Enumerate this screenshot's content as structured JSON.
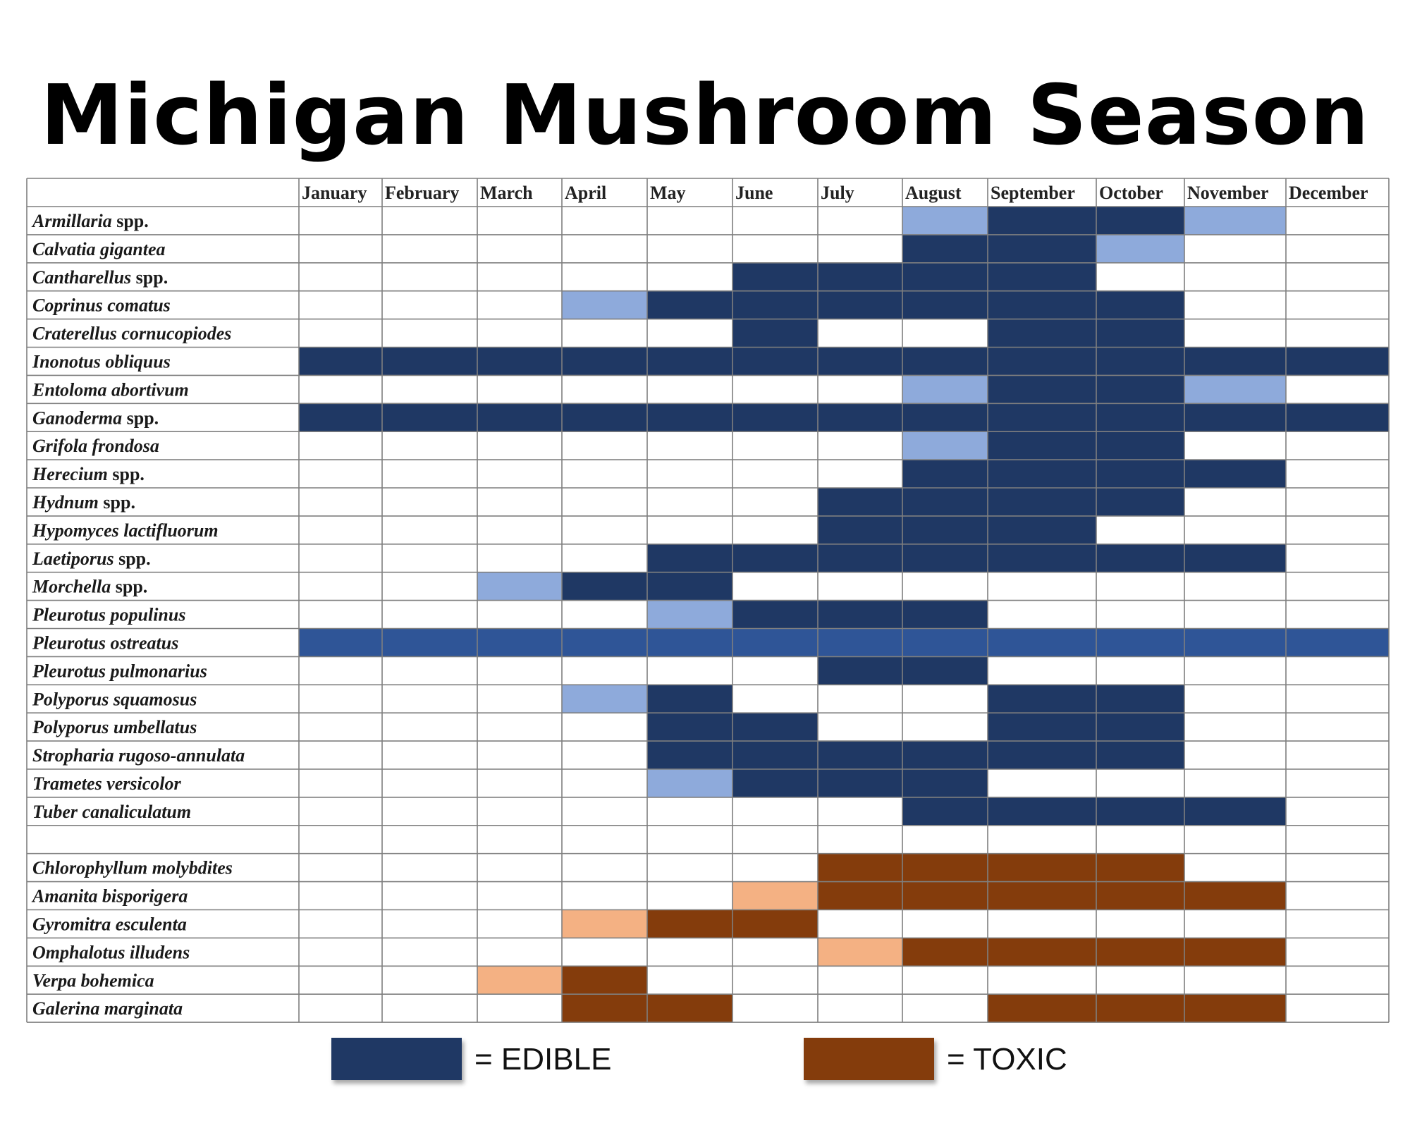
{
  "chart_data": {
    "type": "table",
    "title": "Michigan Mushroom Season",
    "months": [
      "January",
      "February",
      "March",
      "April",
      "May",
      "June",
      "July",
      "August",
      "September",
      "October",
      "November",
      "December"
    ],
    "cell_codes": {
      "0": "none",
      "1": "edible (light)",
      "2": "edible",
      "3": "edible (medium blue)",
      "4": "toxic (light)",
      "5": "toxic"
    },
    "colors": {
      "edible": "#1f3864",
      "edible_light": "#8eaadb",
      "edible_medium": "#2f5597",
      "toxic": "#843c0c",
      "toxic_light": "#f4b183",
      "grid": "#7f7f7f"
    },
    "species": [
      {
        "name": "Armillaria",
        "suffix": "spp.",
        "months": [
          0,
          0,
          0,
          0,
          0,
          0,
          0,
          1,
          2,
          2,
          1,
          0
        ]
      },
      {
        "name": "Calvatia gigantea",
        "suffix": "",
        "months": [
          0,
          0,
          0,
          0,
          0,
          0,
          0,
          2,
          2,
          1,
          0,
          0
        ]
      },
      {
        "name": "Cantharellus",
        "suffix": "spp.",
        "months": [
          0,
          0,
          0,
          0,
          0,
          2,
          2,
          2,
          2,
          0,
          0,
          0
        ]
      },
      {
        "name": "Coprinus comatus",
        "suffix": "",
        "months": [
          0,
          0,
          0,
          1,
          2,
          2,
          2,
          2,
          2,
          2,
          0,
          0
        ]
      },
      {
        "name": "Craterellus cornucopiodes",
        "suffix": "",
        "months": [
          0,
          0,
          0,
          0,
          0,
          2,
          0,
          0,
          2,
          2,
          0,
          0
        ]
      },
      {
        "name": "Inonotus obliquus",
        "suffix": "",
        "months": [
          2,
          2,
          2,
          2,
          2,
          2,
          2,
          2,
          2,
          2,
          2,
          2
        ]
      },
      {
        "name": "Entoloma abortivum",
        "suffix": "",
        "months": [
          0,
          0,
          0,
          0,
          0,
          0,
          0,
          1,
          2,
          2,
          1,
          0
        ]
      },
      {
        "name": "Ganoderma",
        "suffix": "spp.",
        "months": [
          2,
          2,
          2,
          2,
          2,
          2,
          2,
          2,
          2,
          2,
          2,
          2
        ]
      },
      {
        "name": "Grifola frondosa",
        "suffix": "",
        "months": [
          0,
          0,
          0,
          0,
          0,
          0,
          0,
          1,
          2,
          2,
          0,
          0
        ]
      },
      {
        "name": "Herecium",
        "suffix": "spp.",
        "months": [
          0,
          0,
          0,
          0,
          0,
          0,
          0,
          2,
          2,
          2,
          2,
          0
        ]
      },
      {
        "name": "Hydnum",
        "suffix": "spp.",
        "months": [
          0,
          0,
          0,
          0,
          0,
          0,
          2,
          2,
          2,
          2,
          0,
          0
        ]
      },
      {
        "name": "Hypomyces lactifluorum",
        "suffix": "",
        "months": [
          0,
          0,
          0,
          0,
          0,
          0,
          2,
          2,
          2,
          0,
          0,
          0
        ]
      },
      {
        "name": "Laetiporus",
        "suffix": "spp.",
        "months": [
          0,
          0,
          0,
          0,
          2,
          2,
          2,
          2,
          2,
          2,
          2,
          0
        ]
      },
      {
        "name": "Morchella",
        "suffix": "spp.",
        "months": [
          0,
          0,
          1,
          2,
          2,
          0,
          0,
          0,
          0,
          0,
          0,
          0
        ]
      },
      {
        "name": "Pleurotus populinus",
        "suffix": "",
        "months": [
          0,
          0,
          0,
          0,
          1,
          2,
          2,
          2,
          0,
          0,
          0,
          0
        ]
      },
      {
        "name": "Pleurotus ostreatus",
        "suffix": "",
        "months": [
          3,
          3,
          3,
          3,
          3,
          3,
          3,
          3,
          3,
          3,
          3,
          3
        ]
      },
      {
        "name": "Pleurotus pulmonarius",
        "suffix": "",
        "months": [
          0,
          0,
          0,
          0,
          0,
          0,
          2,
          2,
          0,
          0,
          0,
          0
        ]
      },
      {
        "name": "Polyporus squamosus",
        "suffix": "",
        "months": [
          0,
          0,
          0,
          1,
          2,
          0,
          0,
          0,
          2,
          2,
          0,
          0
        ]
      },
      {
        "name": "Polyporus umbellatus",
        "suffix": "",
        "months": [
          0,
          0,
          0,
          0,
          2,
          2,
          0,
          0,
          2,
          2,
          0,
          0
        ]
      },
      {
        "name": "Stropharia rugoso-annulata",
        "suffix": "",
        "months": [
          0,
          0,
          0,
          0,
          2,
          2,
          2,
          2,
          2,
          2,
          0,
          0
        ]
      },
      {
        "name": "Trametes versicolor",
        "suffix": "",
        "months": [
          0,
          0,
          0,
          0,
          1,
          2,
          2,
          2,
          0,
          0,
          0,
          0
        ]
      },
      {
        "name": "Tuber canaliculatum",
        "suffix": "",
        "months": [
          0,
          0,
          0,
          0,
          0,
          0,
          0,
          2,
          2,
          2,
          2,
          0
        ]
      },
      {
        "name": "",
        "suffix": "",
        "months": [
          0,
          0,
          0,
          0,
          0,
          0,
          0,
          0,
          0,
          0,
          0,
          0
        ]
      },
      {
        "name": "Chlorophyllum molybdites",
        "suffix": "",
        "months": [
          0,
          0,
          0,
          0,
          0,
          0,
          5,
          5,
          5,
          5,
          0,
          0
        ]
      },
      {
        "name": "Amanita bisporigera",
        "suffix": "",
        "months": [
          0,
          0,
          0,
          0,
          0,
          4,
          5,
          5,
          5,
          5,
          5,
          0
        ]
      },
      {
        "name": "Gyromitra esculenta",
        "suffix": "",
        "months": [
          0,
          0,
          0,
          4,
          5,
          5,
          0,
          0,
          0,
          0,
          0,
          0
        ]
      },
      {
        "name": "Omphalotus illudens",
        "suffix": "",
        "months": [
          0,
          0,
          0,
          0,
          0,
          0,
          4,
          5,
          5,
          5,
          5,
          0
        ]
      },
      {
        "name": "Verpa bohemica",
        "suffix": "",
        "months": [
          0,
          0,
          4,
          5,
          0,
          0,
          0,
          0,
          0,
          0,
          0,
          0
        ]
      },
      {
        "name": "Galerina marginata",
        "suffix": "",
        "months": [
          0,
          0,
          0,
          5,
          5,
          0,
          0,
          0,
          5,
          5,
          5,
          0
        ]
      }
    ]
  },
  "legend": {
    "edible_label": "= EDIBLE",
    "toxic_label": "= TOXIC",
    "edible_color": "#1f3864",
    "toxic_color": "#843c0c"
  }
}
